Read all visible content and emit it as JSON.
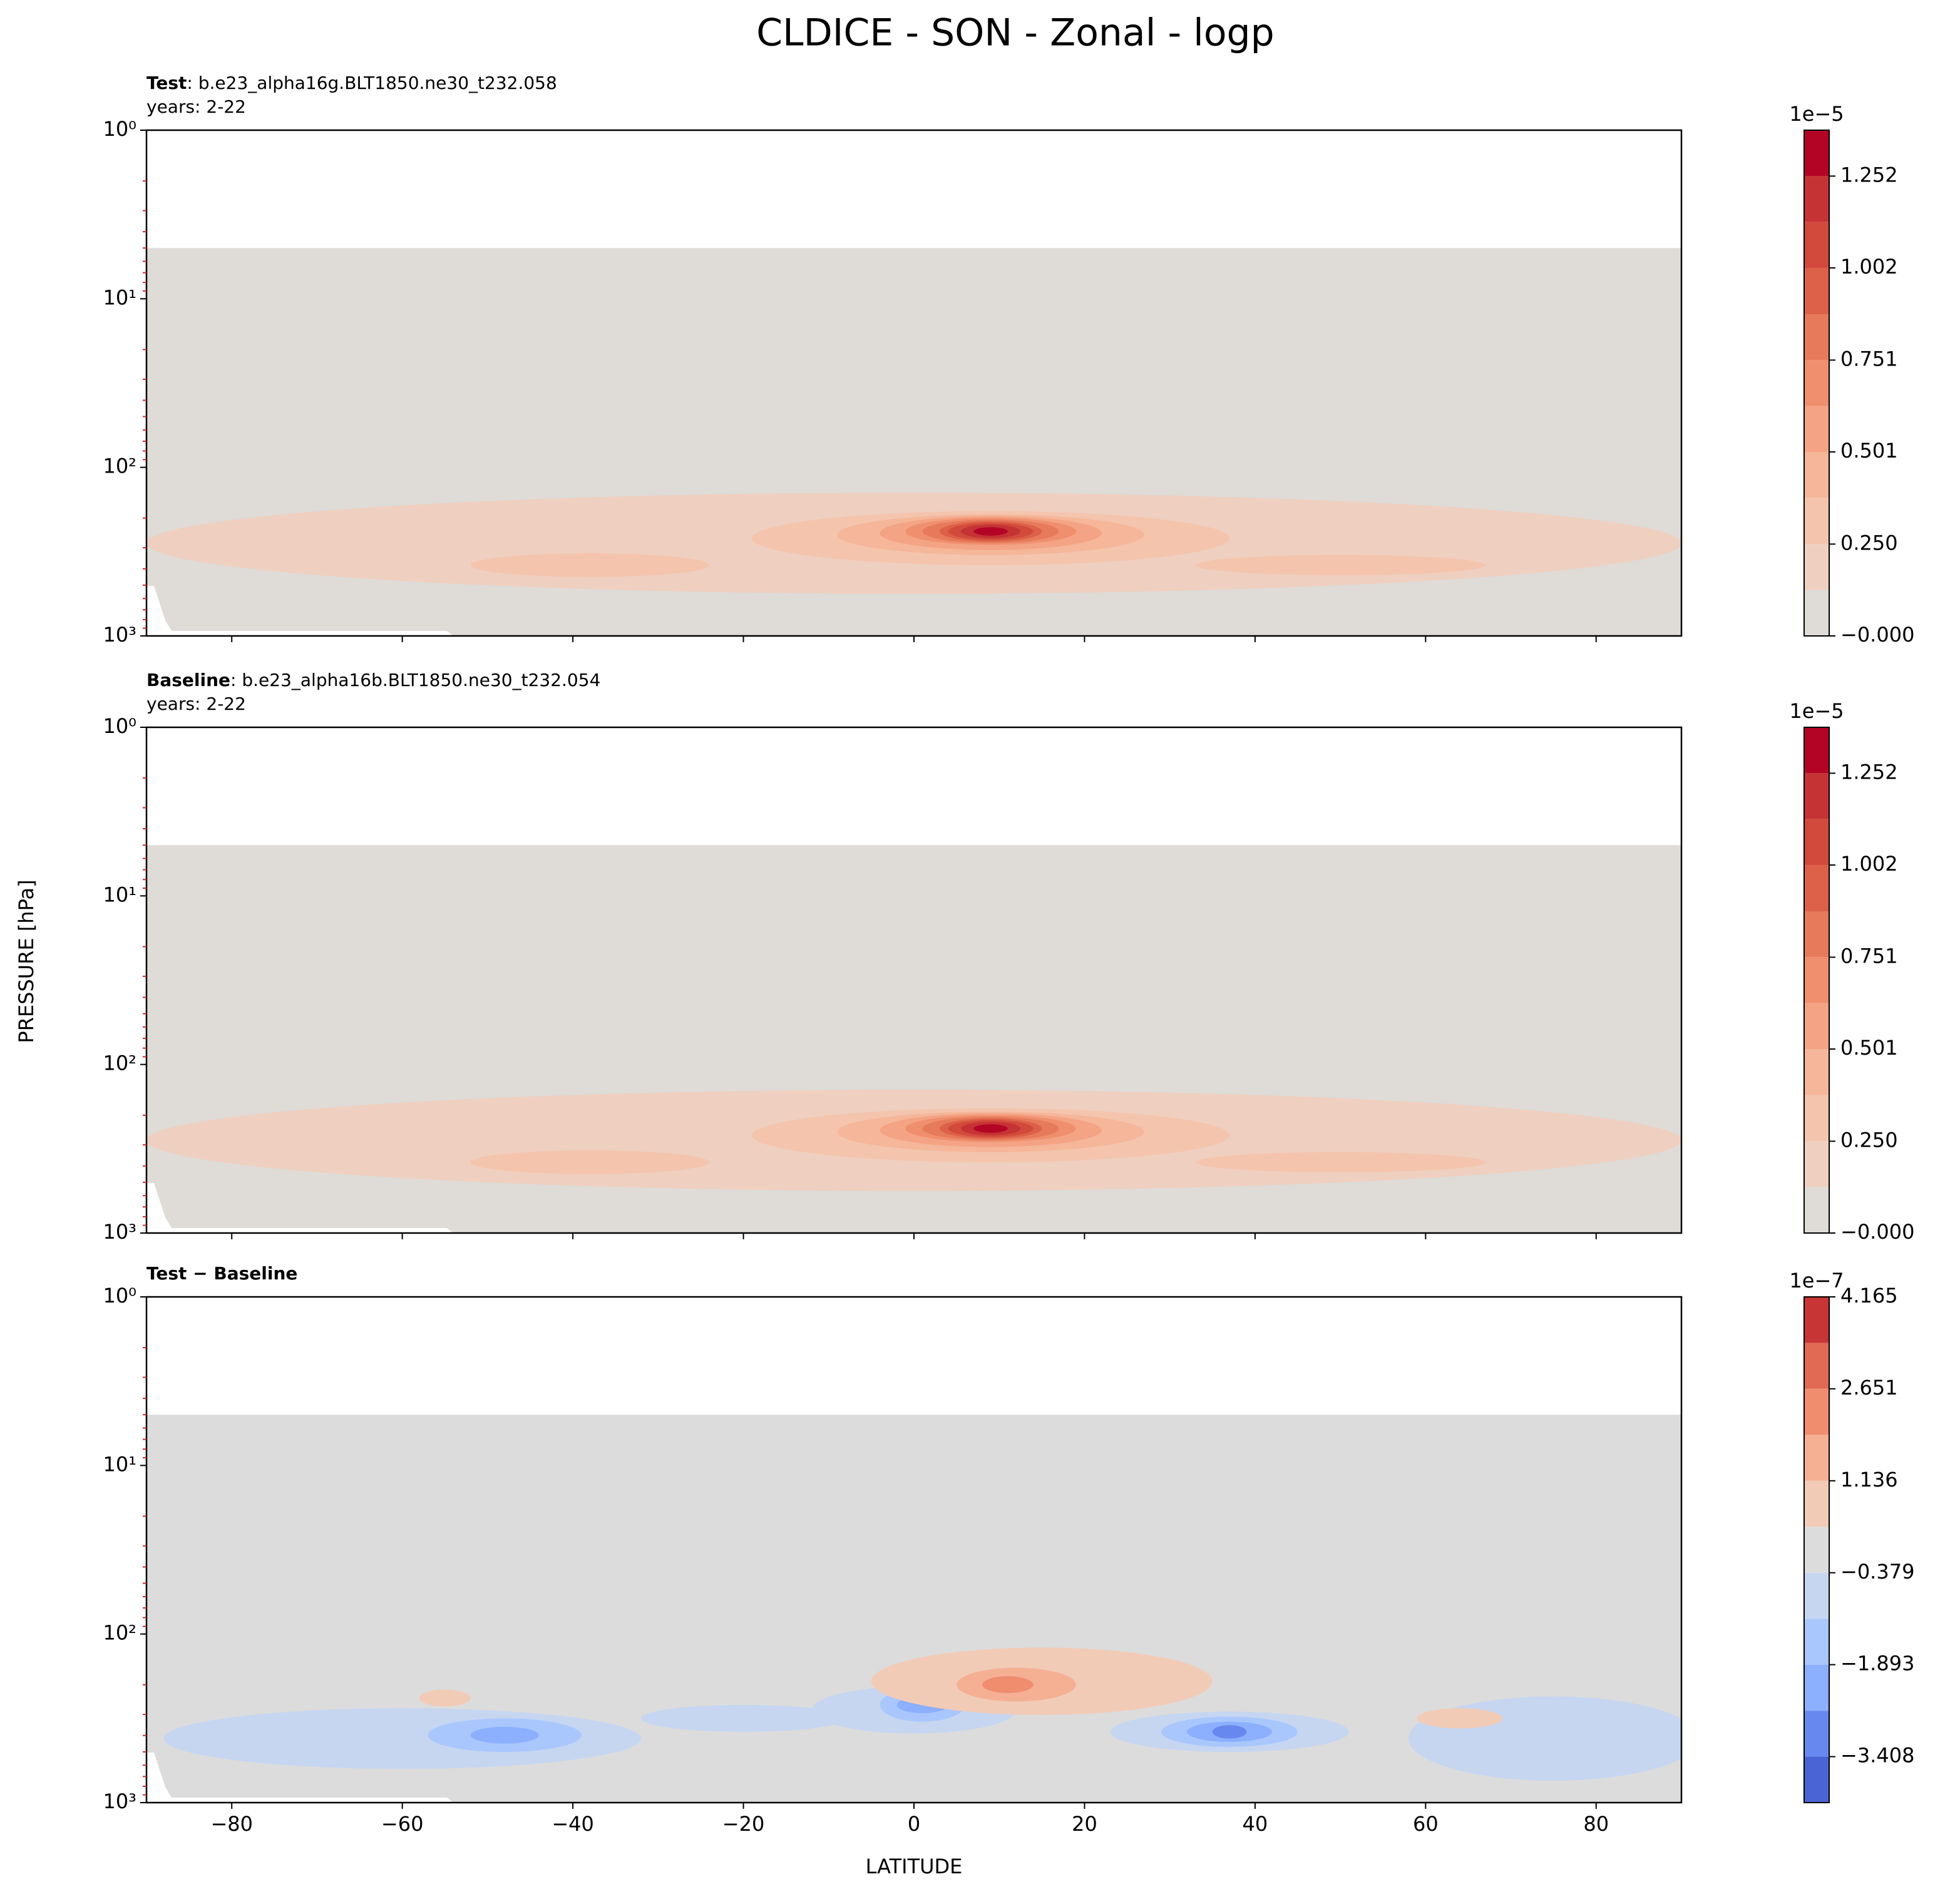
{
  "title": "CLDICE - SON - Zonal - logp",
  "chart_data": [
    {
      "type": "contour",
      "label_bold": "Test",
      "label_text": ": b.e23_alpha16g.BLT1850.ne30_t232.058",
      "years": "years: 2-22",
      "xlim": [
        -90,
        90
      ],
      "ylim": [
        1000,
        1
      ],
      "log_y": true,
      "yticks": [
        {
          "value": 1,
          "label": "10⁰"
        },
        {
          "value": 10,
          "label": "10¹"
        },
        {
          "value": 100,
          "label": "10²"
        },
        {
          "value": 1000,
          "label": "10³"
        }
      ],
      "colorbar": {
        "offset_label": "1e−5",
        "levels": [
          0,
          0.125,
          0.25,
          0.376,
          0.501,
          0.626,
          0.751,
          0.876,
          1.002,
          1.127,
          1.252,
          1.377
        ],
        "colors": [
          "#dfdbd7",
          "#efcfbf",
          "#f4c4ad",
          "#f5b69a",
          "#f4a384",
          "#ef8f6e",
          "#e67a5a",
          "#dd6048",
          "#d24a3c",
          "#c53334",
          "#b40426"
        ],
        "ticks": [
          {
            "value": 0,
            "label": "−0.000"
          },
          {
            "value": 0.25,
            "label": "0.250"
          },
          0.501,
          0.751,
          1.002,
          1.252
        ]
      }
    },
    {
      "type": "contour",
      "label_bold": "Baseline",
      "label_text": ": b.e23_alpha16b.BLT1850.ne30_t232.054",
      "years": "years: 2-22",
      "y_label": "PRESSURE [hPa]",
      "xlim": [
        -90,
        90
      ],
      "ylim": [
        1000,
        1
      ],
      "log_y": true,
      "yticks": [
        {
          "value": 1,
          "label": "10⁰"
        },
        {
          "value": 10,
          "label": "10¹"
        },
        {
          "value": 100,
          "label": "10²"
        },
        {
          "value": 1000,
          "label": "10³"
        }
      ],
      "colorbar": {
        "offset_label": "1e−5",
        "levels": [
          0,
          0.125,
          0.25,
          0.376,
          0.501,
          0.626,
          0.751,
          0.876,
          1.002,
          1.127,
          1.252,
          1.377
        ],
        "colors": [
          "#dfdbd7",
          "#efcfbf",
          "#f4c4ad",
          "#f5b69a",
          "#f4a384",
          "#ef8f6e",
          "#e67a5a",
          "#dd6048",
          "#d24a3c",
          "#c53334",
          "#b40426"
        ],
        "ticks": [
          {
            "value": 0,
            "label": "−0.000"
          },
          {
            "value": 0.25,
            "label": "0.250"
          },
          0.501,
          0.751,
          1.002,
          1.252
        ]
      }
    },
    {
      "type": "contour",
      "label_bold": "Test − Baseline",
      "x_label": "LATITUDE",
      "xlim": [
        -90,
        90
      ],
      "ylim": [
        1000,
        1
      ],
      "log_y": true,
      "xticks": [
        {
          "value": -80,
          "label": "−80"
        },
        {
          "value": -60,
          "label": "−60"
        },
        {
          "value": -40,
          "label": "−40"
        },
        {
          "value": -20,
          "label": "−20"
        },
        0,
        20,
        40,
        60,
        80
      ],
      "yticks": [
        {
          "value": 1,
          "label": "10⁰"
        },
        {
          "value": 10,
          "label": "10¹"
        },
        {
          "value": 100,
          "label": "10²"
        },
        {
          "value": 1000,
          "label": "10³"
        }
      ],
      "colorbar": {
        "offset_label": "1e−7",
        "levels": [
          -4.165,
          -3.408,
          -2.651,
          -1.893,
          -1.136,
          -0.379,
          0.379,
          1.136,
          1.893,
          2.651,
          3.408,
          4.165
        ],
        "colors": [
          "#4b64d5",
          "#6788ee",
          "#8caffe",
          "#aac7fd",
          "#c6d6f1",
          "#dcdcdc",
          "#f2cbb7",
          "#f5b094",
          "#f08d6f",
          "#e06a53",
          "#c73635"
        ],
        "ticks": [
          {
            "value": -3.408,
            "label": "−3.408"
          },
          {
            "value": -1.893,
            "label": "−1.893"
          },
          {
            "value": -0.379,
            "label": "−0.379"
          },
          1.136,
          2.651,
          4.165
        ]
      }
    }
  ]
}
